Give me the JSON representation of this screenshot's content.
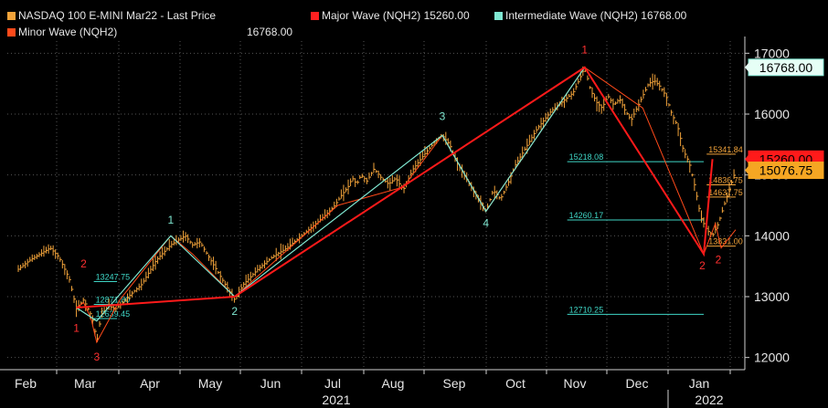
{
  "legend": [
    {
      "label": "NASDAQ 100 E-MINI Mar22 - Last Price",
      "color": "#f2a33a"
    },
    {
      "label": "Major Wave (NQH2) 15260.00",
      "color": "#ff2020"
    },
    {
      "label": "Intermediate Wave (NQH2) 16768.00",
      "color": "#7fe8d2"
    },
    {
      "label": "Minor Wave (NQH2)",
      "color": "#ff4a1a",
      "value": "16768.00"
    }
  ],
  "price_tags": [
    {
      "label": "16768.00",
      "value": 16768,
      "bg": "#e6fff6",
      "fg": "#000000",
      "border": "#7fe8d2"
    },
    {
      "label": "15260.00",
      "value": 15260,
      "bg": "#ff1a1a",
      "fg": "#000000",
      "border": "#ff1a1a"
    },
    {
      "label": "15076.75",
      "value": 15076.75,
      "bg": "#f5a623",
      "fg": "#000000",
      "border": "#f5a623"
    }
  ],
  "chart_data": {
    "type": "line",
    "x_ticks": [
      "Feb",
      "Mar",
      "Apr",
      "May",
      "Jun",
      "Jul",
      "Aug",
      "Sep",
      "Oct",
      "Nov",
      "Dec",
      "Jan"
    ],
    "year_labels": [
      "2021",
      "2022"
    ],
    "y_ticks": [
      "12000",
      "13000",
      "14000",
      "15000",
      "16000",
      "17000"
    ],
    "ylim": [
      11800,
      17200
    ],
    "grid": true,
    "price_path": [
      [
        0,
        13450
      ],
      [
        8,
        13600
      ],
      [
        15,
        13700
      ],
      [
        22,
        13800
      ],
      [
        28,
        13650
      ],
      [
        35,
        13300
      ],
      [
        40,
        12800
      ],
      [
        45,
        12950
      ],
      [
        50,
        12700
      ],
      [
        52,
        12550
      ],
      [
        54,
        12250
      ],
      [
        57,
        12700
      ],
      [
        62,
        12850
      ],
      [
        67,
        12800
      ],
      [
        72,
        12900
      ],
      [
        78,
        13050
      ],
      [
        85,
        13200
      ],
      [
        95,
        13600
      ],
      [
        105,
        13850
      ],
      [
        115,
        14000
      ],
      [
        120,
        13850
      ],
      [
        125,
        13900
      ],
      [
        130,
        13700
      ],
      [
        135,
        13500
      ],
      [
        140,
        13300
      ],
      [
        145,
        13100
      ],
      [
        149,
        12950
      ],
      [
        155,
        13200
      ],
      [
        165,
        13450
      ],
      [
        175,
        13650
      ],
      [
        185,
        13800
      ],
      [
        195,
        14000
      ],
      [
        205,
        14200
      ],
      [
        212,
        14350
      ],
      [
        218,
        14500
      ],
      [
        222,
        14650
      ],
      [
        227,
        14800
      ],
      [
        230,
        14950
      ],
      [
        233,
        14850
      ],
      [
        236,
        15000
      ],
      [
        240,
        14900
      ],
      [
        245,
        15100
      ],
      [
        250,
        14950
      ],
      [
        255,
        14850
      ],
      [
        260,
        14950
      ],
      [
        265,
        14750
      ],
      [
        272,
        15100
      ],
      [
        280,
        15350
      ],
      [
        287,
        15550
      ],
      [
        292,
        15650
      ],
      [
        297,
        15500
      ],
      [
        302,
        15200
      ],
      [
        307,
        15000
      ],
      [
        312,
        14800
      ],
      [
        317,
        14600
      ],
      [
        322,
        14400
      ],
      [
        327,
        14750
      ],
      [
        332,
        14600
      ],
      [
        337,
        14850
      ],
      [
        342,
        15150
      ],
      [
        347,
        15350
      ],
      [
        352,
        15550
      ],
      [
        357,
        15750
      ],
      [
        362,
        15900
      ],
      [
        367,
        16050
      ],
      [
        372,
        16150
      ],
      [
        377,
        16250
      ],
      [
        382,
        16350
      ],
      [
        386,
        16550
      ],
      [
        390,
        16768
      ],
      [
        394,
        16400
      ],
      [
        398,
        16200
      ],
      [
        402,
        16100
      ],
      [
        406,
        16300
      ],
      [
        410,
        16150
      ],
      [
        414,
        16250
      ],
      [
        418,
        16050
      ],
      [
        422,
        15900
      ],
      [
        426,
        16100
      ],
      [
        430,
        16300
      ],
      [
        434,
        16500
      ],
      [
        438,
        16550
      ],
      [
        442,
        16450
      ],
      [
        446,
        16300
      ],
      [
        450,
        16000
      ],
      [
        454,
        15800
      ],
      [
        458,
        15400
      ],
      [
        462,
        15200
      ],
      [
        466,
        14800
      ],
      [
        470,
        14300
      ],
      [
        474,
        14100
      ],
      [
        478,
        14000
      ],
      [
        482,
        14200
      ],
      [
        486,
        14500
      ],
      [
        490,
        14800
      ],
      [
        494,
        15076.75
      ]
    ],
    "major_wave": [
      [
        40,
        12820
      ],
      [
        149,
        13000
      ],
      [
        390,
        16768
      ],
      [
        472,
        13700
      ],
      [
        478,
        15260
      ]
    ],
    "intermediate_wave": [
      [
        40,
        12820
      ],
      [
        54,
        12600
      ],
      [
        105,
        14000
      ],
      [
        149,
        13000
      ],
      [
        292,
        15650
      ],
      [
        322,
        14400
      ],
      [
        390,
        16768
      ]
    ],
    "minor_wave": [
      [
        40,
        12820
      ],
      [
        45,
        12900
      ],
      [
        50,
        12650
      ],
      [
        54,
        12250
      ],
      [
        70,
        12950
      ],
      [
        105,
        14000
      ],
      [
        120,
        13700
      ],
      [
        149,
        13000
      ],
      [
        220,
        14500
      ],
      [
        265,
        14800
      ],
      [
        292,
        15650
      ],
      [
        322,
        14400
      ],
      [
        390,
        16768
      ],
      [
        430,
        16100
      ],
      [
        472,
        13700
      ],
      [
        480,
        14200
      ],
      [
        484,
        13800
      ],
      [
        494,
        14100
      ]
    ],
    "fib_levels": [
      {
        "label": "13247.75",
        "value": 13247.75,
        "x_start": 52,
        "x_end": 68
      },
      {
        "label": "12871.80",
        "value": 12871.8,
        "x_start": 52,
        "x_end": 68
      },
      {
        "label": "12639.45",
        "value": 12639.45,
        "x_start": 52,
        "x_end": 68
      },
      {
        "label": "15218.08",
        "value": 15218.08,
        "x_start": 378,
        "x_end": 472
      },
      {
        "label": "14260.17",
        "value": 14260.17,
        "x_start": 378,
        "x_end": 472
      },
      {
        "label": "12710.25",
        "value": 12710.25,
        "x_start": 378,
        "x_end": 472
      },
      {
        "label": "15341.84",
        "value": 15341.84,
        "x_start": 474,
        "x_end": 494
      },
      {
        "label": "14836.75",
        "value": 14836.75,
        "x_start": 474,
        "x_end": 494
      },
      {
        "label": "14637.75",
        "value": 14637.75,
        "x_start": 474,
        "x_end": 494
      },
      {
        "label": "13831.00",
        "value": 13831,
        "x_start": 474,
        "x_end": 494
      }
    ],
    "wave_labels": [
      {
        "label": "1",
        "x": 40,
        "value": 12420,
        "color": "#ff3030"
      },
      {
        "label": "2",
        "x": 45,
        "value": 13480,
        "color": "#ff3030"
      },
      {
        "label": "3",
        "x": 54,
        "value": 11950,
        "color": "#ff3030"
      },
      {
        "label": "1",
        "x": 105,
        "value": 14200,
        "color": "#7fe8d2"
      },
      {
        "label": "2",
        "x": 149,
        "value": 12700,
        "color": "#7fe8d2"
      },
      {
        "label": "3",
        "x": 292,
        "value": 15900,
        "color": "#7fe8d2"
      },
      {
        "label": "4",
        "x": 322,
        "value": 14150,
        "color": "#7fe8d2"
      },
      {
        "label": "1",
        "x": 390,
        "value": 17000,
        "color": "#ff3030"
      },
      {
        "label": "2",
        "x": 471,
        "value": 13450,
        "color": "#ff3030"
      },
      {
        "label": "2",
        "x": 482,
        "value": 13550,
        "color": "#ff3030"
      }
    ]
  }
}
